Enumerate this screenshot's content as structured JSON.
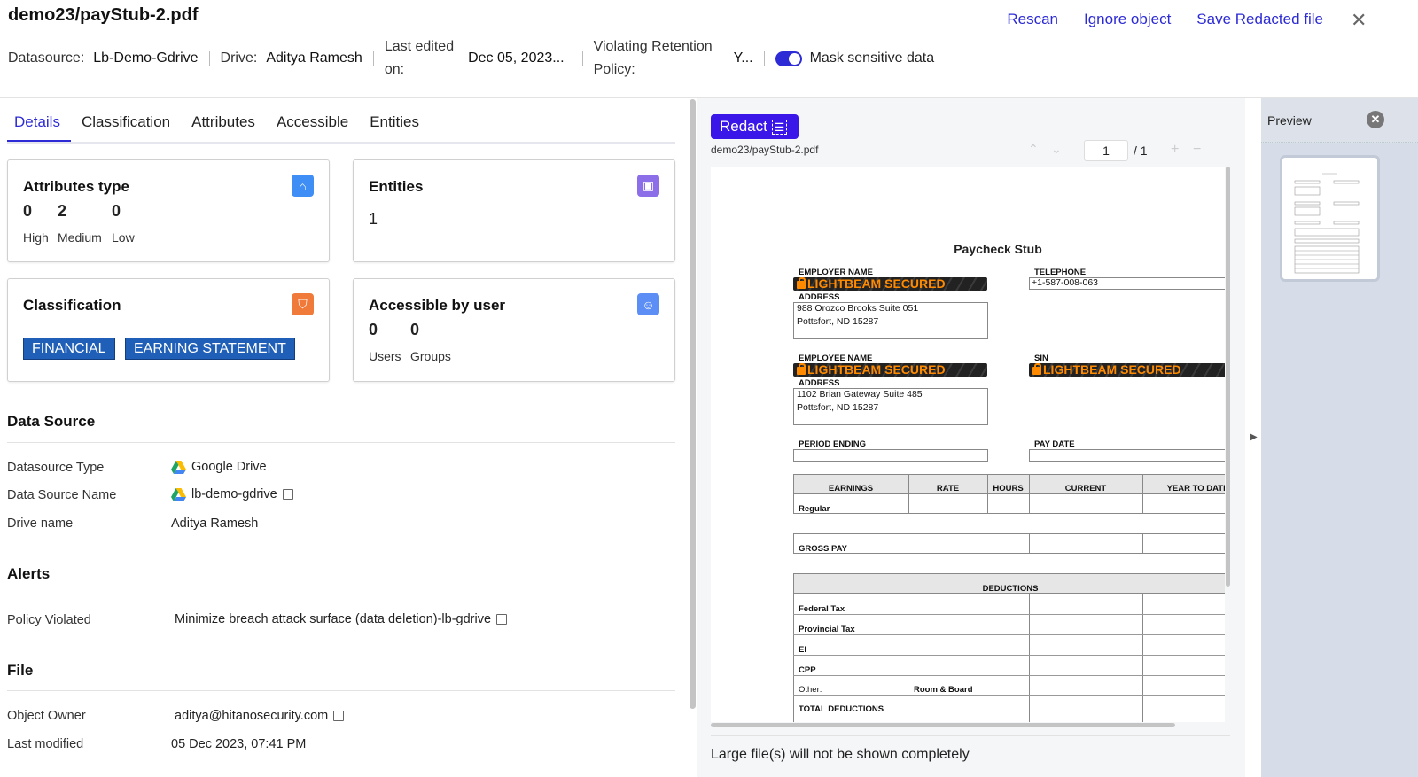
{
  "header": {
    "title": "demo23/payStub-2.pdf",
    "actions": [
      "Rescan",
      "Ignore object",
      "Save Redacted file"
    ],
    "meta": {
      "datasource_label": "Datasource:",
      "datasource": "Lb-Demo-Gdrive",
      "drive_label": "Drive:",
      "drive": "Aditya Ramesh",
      "last_edited_label_1": "Last edited",
      "last_edited_label_2": "on:",
      "last_edited": "Dec 05, 2023...",
      "violating_label_1": "Violating Retention",
      "violating_label_2": "Policy:",
      "violating": "Y...",
      "mask_label": "Mask sensitive data",
      "mask_on": true
    }
  },
  "tabs": [
    "Details",
    "Classification",
    "Attributes",
    "Accessible",
    "Entities"
  ],
  "cards": {
    "attributes": {
      "title": "Attributes type",
      "high": "0",
      "medium": "2",
      "low": "0",
      "high_label": "High",
      "medium_label": "Medium",
      "low_label": "Low"
    },
    "entities": {
      "title": "Entities",
      "count": "1"
    },
    "classification": {
      "title": "Classification",
      "chips": [
        "FINANCIAL",
        "EARNING STATEMENT"
      ]
    },
    "accessible": {
      "title": "Accessible by user",
      "users": "0",
      "groups": "0",
      "users_label": "Users",
      "groups_label": "Groups"
    }
  },
  "data_source": {
    "title": "Data Source",
    "rows": [
      {
        "k": "Datasource Type",
        "v": "Google Drive"
      },
      {
        "k": "Data Source Name",
        "v": "lb-demo-gdrive"
      },
      {
        "k": "Drive name",
        "v": "Aditya Ramesh"
      }
    ]
  },
  "alerts": {
    "title": "Alerts",
    "rows": [
      {
        "k": "Policy Violated",
        "v": "Minimize breach attack surface (data deletion)-lb-gdrive"
      }
    ]
  },
  "file": {
    "title": "File",
    "rows": [
      {
        "k": "Object Owner",
        "v": "aditya@hitanosecurity.com"
      },
      {
        "k": "Last modified",
        "v": "05 Dec 2023, 07:41 PM"
      }
    ]
  },
  "viewer": {
    "redact_label": "Redact",
    "file_name": "demo23/payStub-2.pdf",
    "page": "1",
    "total": "/ 1",
    "note": "Large file(s) will not be shown completely"
  },
  "document": {
    "title": "Paycheck Stub",
    "employer_name": "EMPLOYER NAME",
    "redacted": "LIGHTBEAM SECURED",
    "address": "ADDRESS",
    "employer_addr1": "988 Orozco Brooks Suite 051",
    "employer_addr2": "Pottsfort, ND 15287",
    "telephone": "TELEPHONE",
    "telephone_value": "+1-587-008-063",
    "employee_name": "EMPLOYEE NAME",
    "sin": "SIN",
    "employee_addr1": "1102 Brian Gateway Suite 485",
    "employee_addr2": "Pottsfort, ND 15287",
    "period_ending": "PERIOD ENDING",
    "pay_date": "PAY DATE",
    "earnings_headers": [
      "EARNINGS",
      "RATE",
      "HOURS",
      "CURRENT",
      "YEAR TO DATE"
    ],
    "regular": "Regular",
    "gross_pay": "GROSS PAY",
    "deductions": "DEDUCTIONS",
    "deduction_rows": [
      "Federal Tax",
      "Provincial Tax",
      "EI",
      "CPP",
      "Other:",
      "TOTAL DEDUCTIONS"
    ],
    "other_value": "Room & Board"
  },
  "preview": {
    "title": "Preview"
  },
  "colors": {
    "accent": "#2d2bd6",
    "redact": "#3a16e8",
    "chip": "#1f5fb8",
    "redaction_text": "#ff8a00"
  }
}
